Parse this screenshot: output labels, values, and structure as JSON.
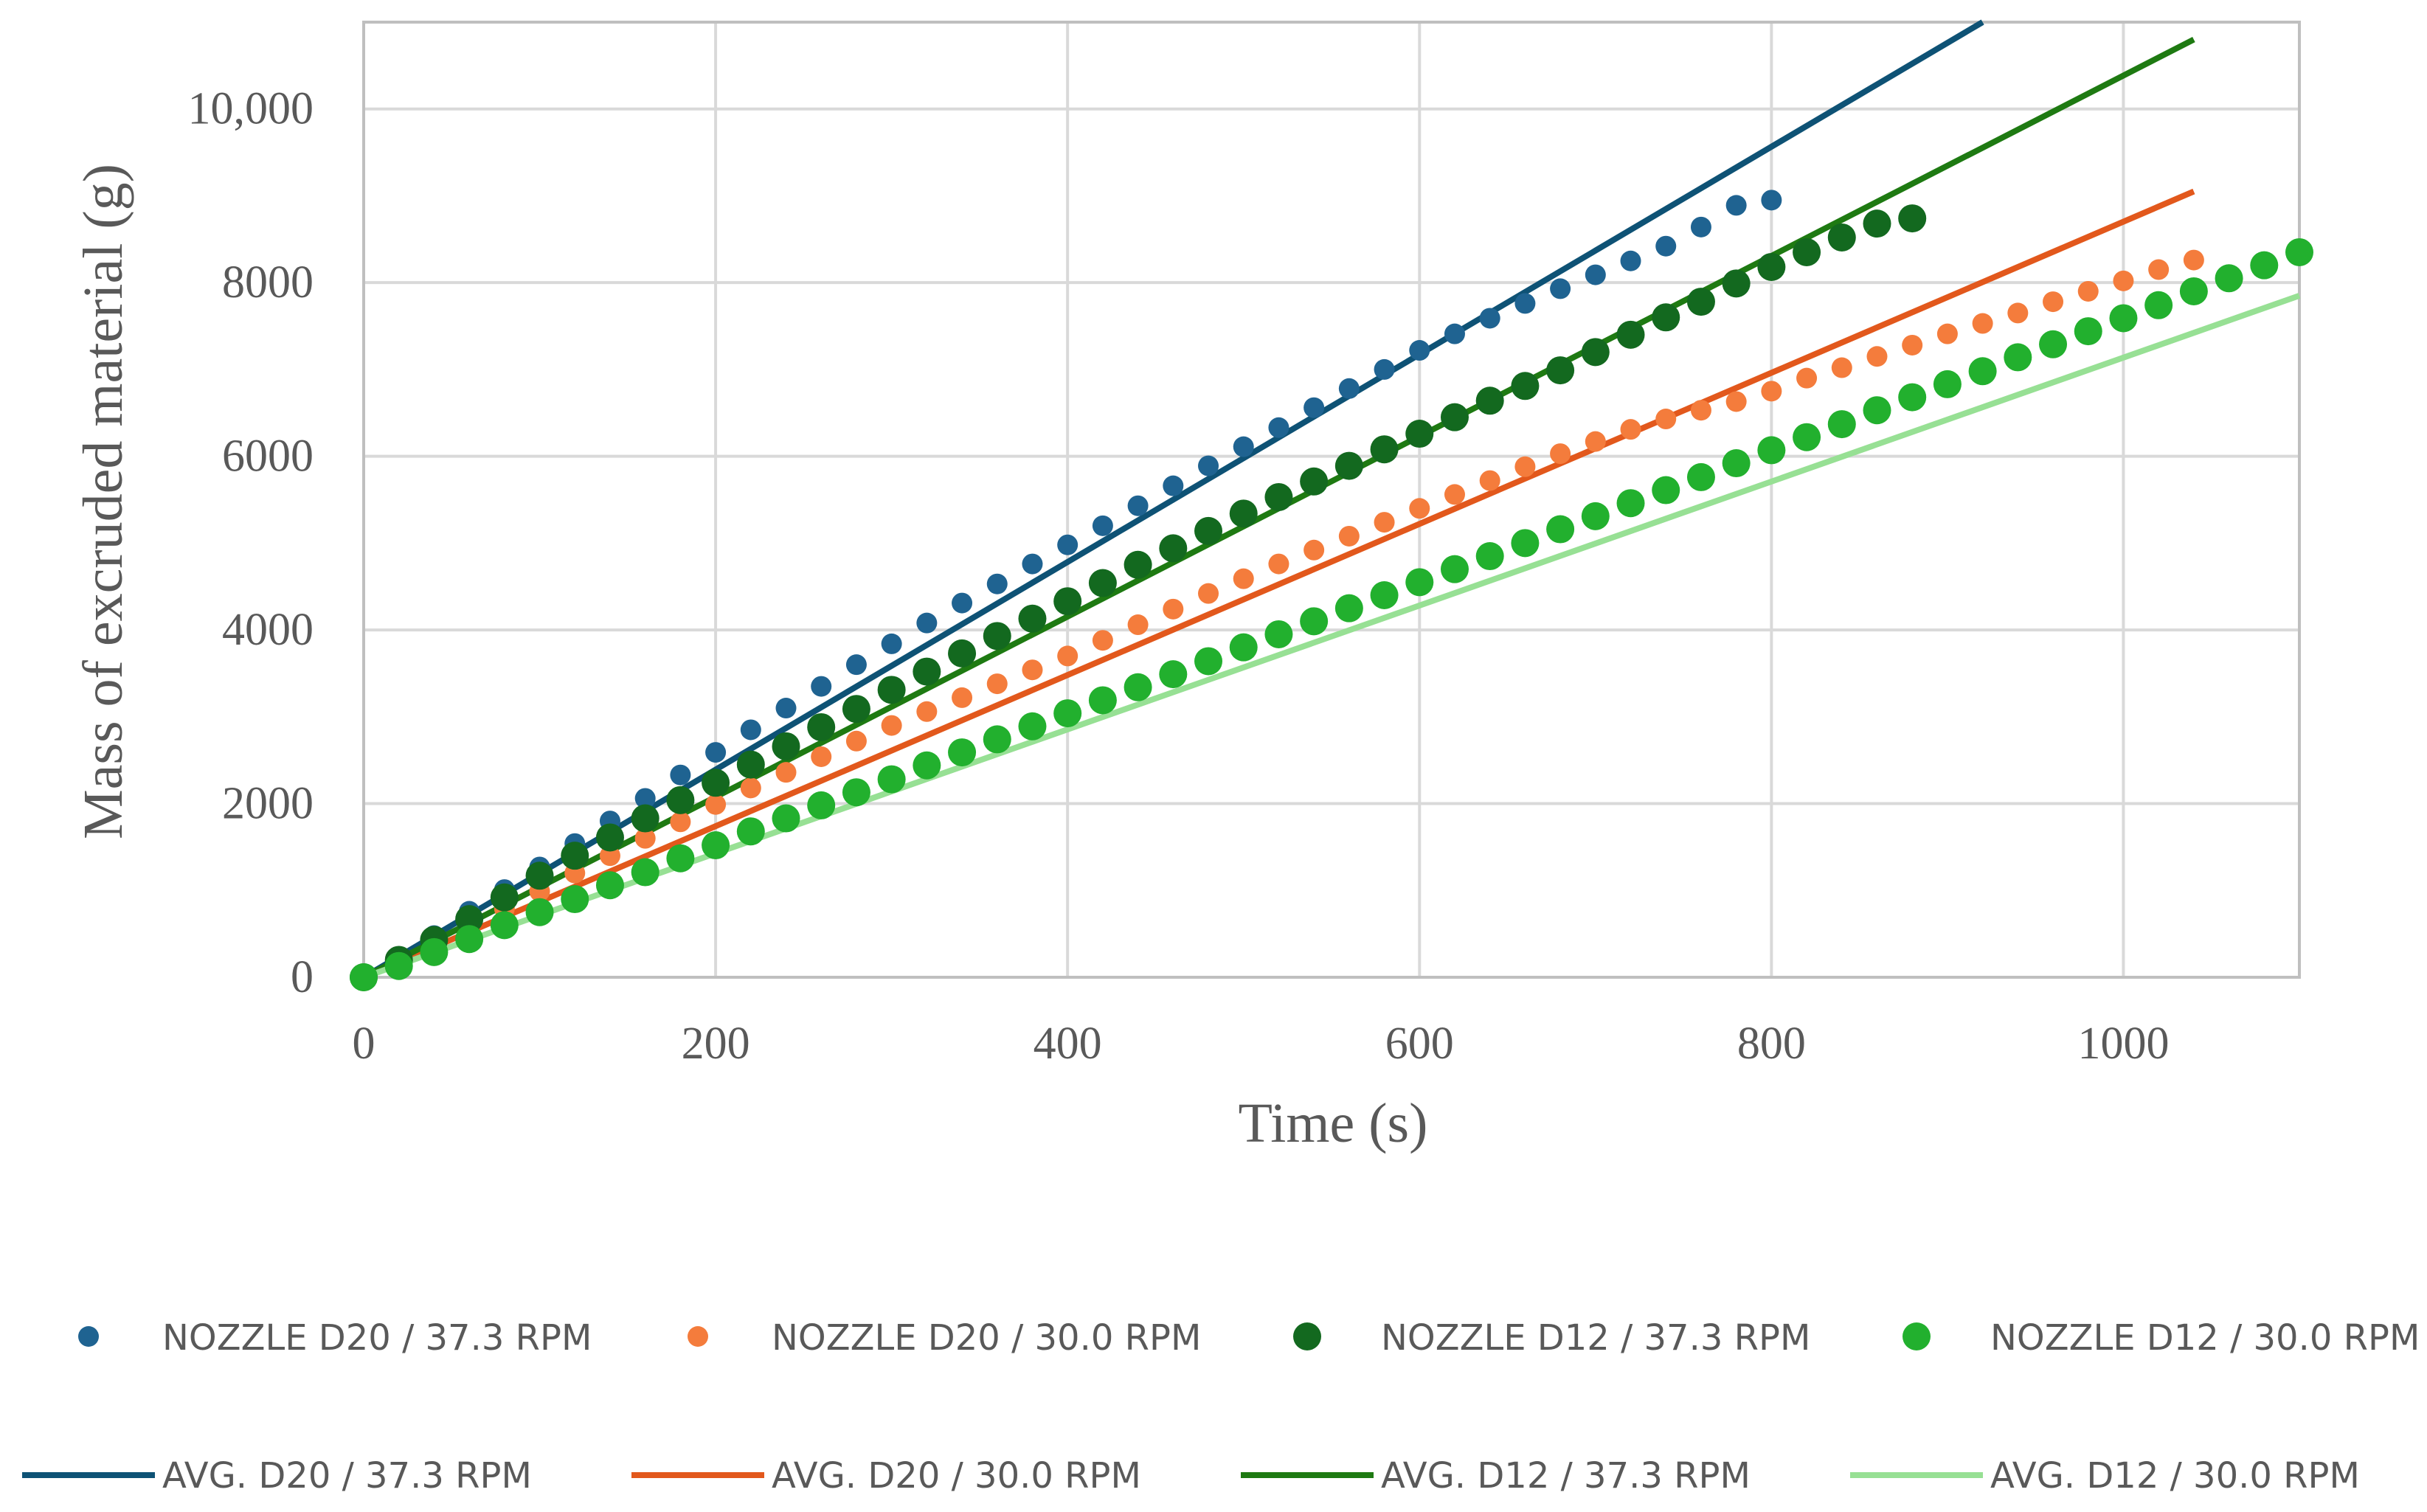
{
  "chart_data": {
    "type": "scatter",
    "title": "",
    "xlabel": "Time (s)",
    "ylabel": "Mass of excruded material (g)",
    "xlim": [
      0,
      1100
    ],
    "ylim": [
      0,
      11000
    ],
    "x_ticks": [
      0,
      200,
      400,
      600,
      800,
      1000
    ],
    "x_tick_labels": [
      "0",
      "200",
      "400",
      "600",
      "800",
      "1000"
    ],
    "y_ticks": [
      0,
      2000,
      4000,
      6000,
      8000,
      10000
    ],
    "y_tick_labels": [
      "0",
      "2000",
      "4000",
      "6000",
      "8000",
      "10,000"
    ],
    "grid": true,
    "legend_position": "bottom",
    "series": [
      {
        "name": "NOZZLE D20 / 37.3 RPM",
        "kind": "scatter",
        "color": "#1F6391",
        "marker_size": "small",
        "x": [
          0,
          20,
          40,
          60,
          80,
          100,
          120,
          140,
          160,
          180,
          200,
          220,
          240,
          260,
          280,
          300,
          320,
          340,
          360,
          380,
          400,
          420,
          440,
          460,
          480,
          500,
          520,
          540,
          560,
          580,
          600,
          620,
          640,
          660,
          680,
          700,
          720,
          740,
          760,
          780,
          800
        ],
        "y": [
          0,
          240,
          480,
          760,
          1010,
          1270,
          1540,
          1800,
          2060,
          2330,
          2590,
          2850,
          3100,
          3350,
          3600,
          3840,
          4080,
          4310,
          4530,
          4760,
          4980,
          5200,
          5430,
          5660,
          5890,
          6110,
          6330,
          6560,
          6780,
          7000,
          7220,
          7410,
          7590,
          7760,
          7930,
          8090,
          8250,
          8420,
          8640,
          8890,
          8950
        ]
      },
      {
        "name": "NOZZLE D20 / 30.0 RPM",
        "kind": "scatter",
        "color": "#F47C3C",
        "marker_size": "small",
        "x": [
          0,
          20,
          40,
          60,
          80,
          100,
          120,
          140,
          160,
          180,
          200,
          220,
          240,
          260,
          280,
          300,
          320,
          340,
          360,
          380,
          400,
          420,
          440,
          460,
          480,
          500,
          520,
          540,
          560,
          580,
          600,
          620,
          640,
          660,
          680,
          700,
          720,
          740,
          760,
          780,
          800,
          820,
          840,
          860,
          880,
          900,
          920,
          940,
          960,
          980,
          1000,
          1020,
          1040
        ],
        "y": [
          0,
          190,
          390,
          590,
          790,
          990,
          1200,
          1400,
          1600,
          1790,
          1990,
          2180,
          2360,
          2540,
          2720,
          2900,
          3060,
          3220,
          3380,
          3540,
          3700,
          3880,
          4060,
          4240,
          4420,
          4590,
          4760,
          4920,
          5080,
          5240,
          5400,
          5560,
          5720,
          5880,
          6030,
          6170,
          6310,
          6430,
          6530,
          6630,
          6750,
          6900,
          7020,
          7150,
          7280,
          7410,
          7530,
          7650,
          7780,
          7900,
          8020,
          8150,
          8260
        ]
      },
      {
        "name": "NOZZLE D12 / 37.3 RPM",
        "kind": "scatter",
        "color": "#13691F",
        "marker_size": "large",
        "x": [
          0,
          20,
          40,
          60,
          80,
          100,
          120,
          140,
          160,
          180,
          200,
          220,
          240,
          260,
          280,
          300,
          320,
          340,
          360,
          380,
          400,
          420,
          440,
          460,
          480,
          500,
          520,
          540,
          560,
          580,
          600,
          620,
          640,
          660,
          680,
          700,
          720,
          740,
          760,
          780,
          800,
          820,
          840,
          860,
          880
        ],
        "y": [
          0,
          200,
          430,
          670,
          920,
          1170,
          1400,
          1610,
          1830,
          2040,
          2240,
          2450,
          2660,
          2880,
          3090,
          3310,
          3520,
          3730,
          3930,
          4130,
          4330,
          4540,
          4750,
          4940,
          5140,
          5340,
          5530,
          5710,
          5890,
          6080,
          6260,
          6450,
          6640,
          6810,
          6990,
          7200,
          7400,
          7600,
          7780,
          7990,
          8180,
          8350,
          8520,
          8680,
          8740
        ]
      },
      {
        "name": "NOZZLE D12 / 30.0 RPM",
        "kind": "scatter",
        "color": "#22B02E",
        "marker_size": "large",
        "x": [
          0,
          20,
          40,
          60,
          80,
          100,
          120,
          140,
          160,
          180,
          200,
          220,
          240,
          260,
          280,
          300,
          320,
          340,
          360,
          380,
          400,
          420,
          440,
          460,
          480,
          500,
          520,
          540,
          560,
          580,
          600,
          620,
          640,
          660,
          680,
          700,
          720,
          740,
          760,
          780,
          800,
          820,
          840,
          860,
          880,
          900,
          920,
          940,
          960,
          980,
          1000,
          1020,
          1040,
          1060,
          1080,
          1100
        ],
        "y": [
          0,
          130,
          290,
          440,
          600,
          750,
          900,
          1060,
          1210,
          1370,
          1520,
          1680,
          1830,
          1980,
          2130,
          2280,
          2440,
          2590,
          2740,
          2890,
          3040,
          3190,
          3340,
          3490,
          3640,
          3800,
          3950,
          4100,
          4250,
          4400,
          4550,
          4700,
          4850,
          5000,
          5160,
          5310,
          5460,
          5610,
          5760,
          5920,
          6070,
          6220,
          6370,
          6530,
          6680,
          6830,
          6980,
          7140,
          7290,
          7440,
          7590,
          7740,
          7900,
          8050,
          8200,
          8350
        ]
      },
      {
        "name": "AVG. D20 / 37.3 RPM",
        "kind": "line",
        "color": "#0E5275",
        "x": [
          0,
          920
        ],
        "y": [
          0,
          11000
        ]
      },
      {
        "name": "AVG. D20 / 30.0 RPM",
        "kind": "line",
        "color": "#E2581C",
        "x": [
          0,
          1040
        ],
        "y": [
          0,
          9050
        ]
      },
      {
        "name": "AVG. D12 / 37.3 RPM",
        "kind": "line",
        "color": "#1E7A12",
        "x": [
          0,
          1040
        ],
        "y": [
          0,
          10800
        ]
      },
      {
        "name": "AVG. D12 / 30.0 RPM",
        "kind": "line",
        "color": "#97E094",
        "x": [
          0,
          1100
        ],
        "y": [
          0,
          7850
        ]
      }
    ]
  }
}
